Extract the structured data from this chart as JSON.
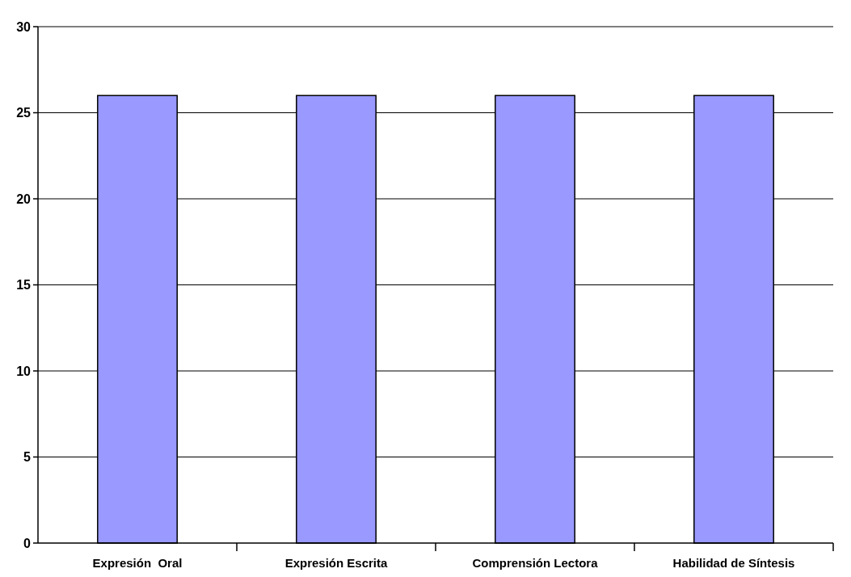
{
  "chart_data": {
    "type": "bar",
    "categories": [
      "Expresión  Oral",
      "Expresión Escrita",
      "Comprensión Lectora",
      "Habilidad de Síntesis"
    ],
    "values": [
      26,
      26,
      26,
      26
    ],
    "color": "#9999ff",
    "ylim": [
      0,
      30
    ],
    "yticks": [
      0,
      5,
      10,
      15,
      20,
      25,
      30
    ],
    "grid": "y"
  }
}
